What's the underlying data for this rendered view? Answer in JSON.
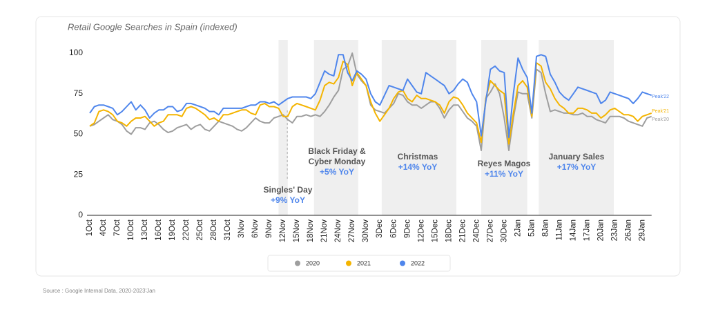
{
  "chart_data": {
    "type": "line",
    "title": "Retail Google Searches in Spain (indexed)",
    "source": "Source : Google Internal Data, 2020-2023'Jan",
    "categories": [
      "1Oct",
      null,
      null,
      "4Oct",
      null,
      null,
      "7Oct",
      null,
      null,
      "10Oct",
      null,
      null,
      "13Oct",
      null,
      null,
      "16Oct",
      null,
      null,
      "19Oct",
      null,
      null,
      "22Oct",
      null,
      null,
      "25Oct",
      null,
      null,
      "28Oct",
      null,
      null,
      "31Oct",
      null,
      null,
      "3Nov",
      null,
      null,
      "6Nov",
      null,
      null,
      "9Nov",
      null,
      null,
      "12Nov",
      null,
      null,
      "15Nov",
      null,
      null,
      "18Nov",
      null,
      null,
      "21Nov",
      null,
      null,
      "24Nov",
      null,
      null,
      "27Nov",
      null,
      null,
      "30Nov",
      null,
      null,
      "3Dec",
      null,
      null,
      "6Dec",
      null,
      null,
      "9Dec",
      null,
      null,
      "12Dec",
      null,
      null,
      "15Dec",
      null,
      null,
      "18Dec",
      null,
      null,
      "21Dec",
      null,
      null,
      "24Dec",
      null,
      null,
      "27Dec",
      null,
      null,
      "30Dec",
      null,
      null,
      "2Jan",
      null,
      null,
      "5Jan",
      null,
      null,
      "8Jan",
      null,
      null,
      "11Jan",
      null,
      null,
      "14Jan",
      null,
      null,
      "17Jan",
      null,
      null,
      "20Jan",
      null,
      null,
      "23Jan",
      null,
      null,
      "26Jan",
      null,
      null,
      "29Jan",
      null,
      null
    ],
    "series": [
      {
        "name": "2020",
        "end_label": "Peak'20",
        "color": "#9e9e9e",
        "values": [
          55,
          56,
          58,
          60,
          62,
          59,
          58,
          56,
          52,
          50,
          54,
          54,
          53,
          57,
          58,
          56,
          53,
          51,
          52,
          54,
          55,
          56,
          53,
          55,
          56,
          53,
          52,
          55,
          58,
          57,
          56,
          55,
          53,
          52,
          54,
          57,
          60,
          58,
          57,
          57,
          60,
          61,
          62,
          59,
          57,
          61,
          61,
          62,
          61,
          62,
          61,
          64,
          68,
          73,
          77,
          90,
          92,
          100,
          87,
          83,
          80,
          68,
          65,
          64,
          63,
          66,
          69,
          75,
          74,
          70,
          68,
          68,
          66,
          68,
          70,
          70,
          66,
          60,
          65,
          68,
          68,
          64,
          60,
          58,
          55,
          40,
          72,
          76,
          81,
          75,
          60,
          40,
          60,
          76,
          75,
          75,
          60,
          90,
          88,
          75,
          64,
          65,
          64,
          63,
          63,
          62,
          62,
          63,
          61,
          61,
          59,
          58,
          57,
          61,
          61,
          61,
          60,
          58,
          57,
          56,
          55,
          60,
          61
        ]
      },
      {
        "name": "2021",
        "end_label": "Peak'21",
        "color": "#f4b400",
        "values": [
          55,
          57,
          64,
          65,
          64,
          62,
          58,
          57,
          55,
          58,
          60,
          60,
          61,
          58,
          55,
          57,
          58,
          62,
          62,
          62,
          61,
          66,
          67,
          66,
          64,
          62,
          59,
          60,
          58,
          62,
          62,
          63,
          64,
          65,
          65,
          63,
          62,
          68,
          69,
          67,
          67,
          66,
          61,
          61,
          67,
          69,
          68,
          67,
          66,
          65,
          71,
          80,
          82,
          81,
          85,
          95,
          93,
          80,
          88,
          84,
          80,
          70,
          63,
          58,
          62,
          66,
          72,
          76,
          77,
          72,
          70,
          74,
          72,
          72,
          71,
          70,
          68,
          63,
          70,
          73,
          72,
          68,
          63,
          60,
          57,
          45,
          72,
          83,
          80,
          77,
          75,
          44,
          63,
          80,
          83,
          79,
          61,
          94,
          92,
          82,
          78,
          72,
          68,
          66,
          63,
          63,
          66,
          66,
          65,
          63,
          63,
          60,
          62,
          65,
          66,
          64,
          62,
          62,
          61,
          58,
          61,
          62,
          63
        ]
      },
      {
        "name": "2022",
        "end_label": "Peak'22",
        "color": "#4f86ec",
        "values": [
          63,
          67,
          68,
          68,
          67,
          66,
          62,
          64,
          67,
          70,
          65,
          68,
          65,
          60,
          63,
          65,
          65,
          67,
          67,
          64,
          65,
          69,
          69,
          68,
          67,
          66,
          64,
          64,
          62,
          66,
          66,
          66,
          66,
          66,
          67,
          68,
          68,
          70,
          70,
          69,
          70,
          68,
          70,
          72,
          73,
          73,
          73,
          73,
          72,
          75,
          82,
          89,
          87,
          86,
          99,
          99,
          88,
          83,
          89,
          87,
          84,
          75,
          70,
          68,
          74,
          80,
          79,
          78,
          77,
          84,
          80,
          76,
          75,
          88,
          86,
          84,
          82,
          80,
          75,
          77,
          81,
          84,
          82,
          75,
          70,
          49,
          70,
          90,
          92,
          89,
          88,
          48,
          75,
          97,
          90,
          85,
          63,
          98,
          99,
          98,
          87,
          82,
          76,
          73,
          71,
          75,
          79,
          78,
          77,
          76,
          75,
          69,
          71,
          76,
          75,
          74,
          73,
          72,
          69,
          72,
          76,
          75,
          74
        ]
      }
    ],
    "ylim": [
      0,
      100
    ],
    "yticks": [
      0,
      25,
      50,
      75,
      100
    ],
    "grid": false,
    "annotations": [
      {
        "lines": [
          "Singles' Day"
        ],
        "change": "+9% YoY"
      },
      {
        "lines": [
          "Black Friday &",
          "Cyber Monday"
        ],
        "change": "+5% YoY"
      },
      {
        "lines": [
          "Christmas"
        ],
        "change": "+14% YoY"
      },
      {
        "lines": [
          "Reyes Magos"
        ],
        "change": "+11% YoY"
      },
      {
        "lines": [
          "January Sales"
        ],
        "change": "+17% YoY"
      }
    ]
  }
}
